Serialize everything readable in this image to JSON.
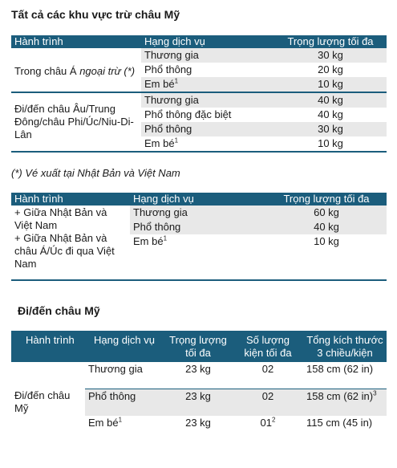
{
  "section1": {
    "title": "Tất cả các khu vực trừ châu Mỹ",
    "headers": [
      "Hành trình",
      "Hạng dịch vụ",
      "Trọng lượng tối đa"
    ],
    "groups": [
      {
        "route": "Trong châu Á",
        "route_italic": "ngoại trừ (*)",
        "rows": [
          {
            "cls": "Thương gia",
            "sup": "",
            "weight": "30 kg"
          },
          {
            "cls": "Phổ thông",
            "sup": "",
            "weight": "20 kg"
          },
          {
            "cls": "Em bé",
            "sup": "1",
            "weight": "10 kg"
          }
        ]
      },
      {
        "route": "Đi/đến châu Âu/Trung Đông/châu Phi/Úc/Niu-Di-Lân",
        "route_italic": "",
        "rows": [
          {
            "cls": "Thương gia",
            "sup": "",
            "weight": "40 kg"
          },
          {
            "cls": "Phổ thông đặc biệt",
            "sup": "",
            "weight": "40 kg"
          },
          {
            "cls": "Phổ thông",
            "sup": "",
            "weight": "30 kg"
          },
          {
            "cls": "Em bé",
            "sup": "1",
            "weight": "10 kg"
          }
        ]
      }
    ]
  },
  "note": "(*) Vé xuất tại Nhật Bản và Việt Nam",
  "section2": {
    "headers": [
      "Hành trình",
      "Hạng dịch vụ",
      "Trọng lượng tối đa"
    ],
    "route": "+ Giữa Nhật Bản và Việt Nam\n+ Giữa Nhật Bản và châu Á/Úc đi qua Việt Nam",
    "rows": [
      {
        "cls": "Thương gia",
        "sup": "",
        "weight": "60 kg"
      },
      {
        "cls": "Phổ thông",
        "sup": "",
        "weight": "40 kg"
      },
      {
        "cls": "Em bé",
        "sup": "1",
        "weight": "10 kg"
      }
    ]
  },
  "section3": {
    "title": "Đi/đến châu Mỹ",
    "headers": [
      "Hành trình",
      "Hạng dịch vụ",
      "Trọng lượng tối đa",
      "Số lượng kiện tối đa",
      "Tổng kích thước 3 chiều/kiện"
    ],
    "route": "Đi/đến châu Mỹ",
    "rows": [
      {
        "cls": "Thương gia",
        "cls_sup": "",
        "weight": "23 kg",
        "pieces": "02",
        "pieces_sup": "",
        "size": "158 cm (62 in)",
        "size_sup": ""
      },
      {
        "cls": "Phổ thông",
        "cls_sup": "",
        "weight": "23 kg",
        "pieces": "02",
        "pieces_sup": "",
        "size": "158 cm (62 in)",
        "size_sup": "3"
      },
      {
        "cls": "Em bé",
        "cls_sup": "1",
        "weight": "23 kg",
        "pieces": "01",
        "pieces_sup": "2",
        "size": "115 cm (45 in)",
        "size_sup": ""
      }
    ]
  }
}
